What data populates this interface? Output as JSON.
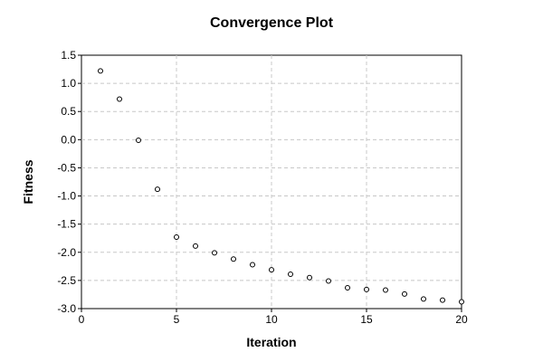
{
  "chart_data": {
    "type": "scatter",
    "title": "Convergence Plot",
    "xlabel": "Iteration",
    "ylabel": "Fitness",
    "xlim": [
      0,
      20
    ],
    "ylim": [
      -3.0,
      1.5
    ],
    "xticks": [
      0,
      5,
      10,
      15,
      20
    ],
    "xtick_labels": [
      "0",
      "5",
      "10",
      "15",
      "20"
    ],
    "yticks": [
      1.5,
      1.0,
      0.5,
      0.0,
      -0.5,
      -1.0,
      -1.5,
      -2.0,
      -2.5,
      -3.0
    ],
    "ytick_labels": [
      "1.5",
      "1.0",
      "0.5",
      "0.0",
      "-0.5",
      "-1.0",
      "-1.5",
      "-2.0",
      "-2.5",
      "-3.0"
    ],
    "grid": true,
    "marker": "open-circle",
    "series": [
      {
        "x": [
          1,
          2,
          3,
          4,
          5,
          6,
          7,
          8,
          9,
          10,
          11,
          12,
          13,
          14,
          15,
          16,
          17,
          18,
          19,
          20
        ],
        "y": [
          1.22,
          0.72,
          -0.01,
          -0.88,
          -1.73,
          -1.89,
          -2.01,
          -2.12,
          -2.22,
          -2.31,
          -2.39,
          -2.45,
          -2.51,
          -2.63,
          -2.66,
          -2.67,
          -2.74,
          -2.83,
          -2.85,
          -2.88
        ]
      }
    ]
  }
}
